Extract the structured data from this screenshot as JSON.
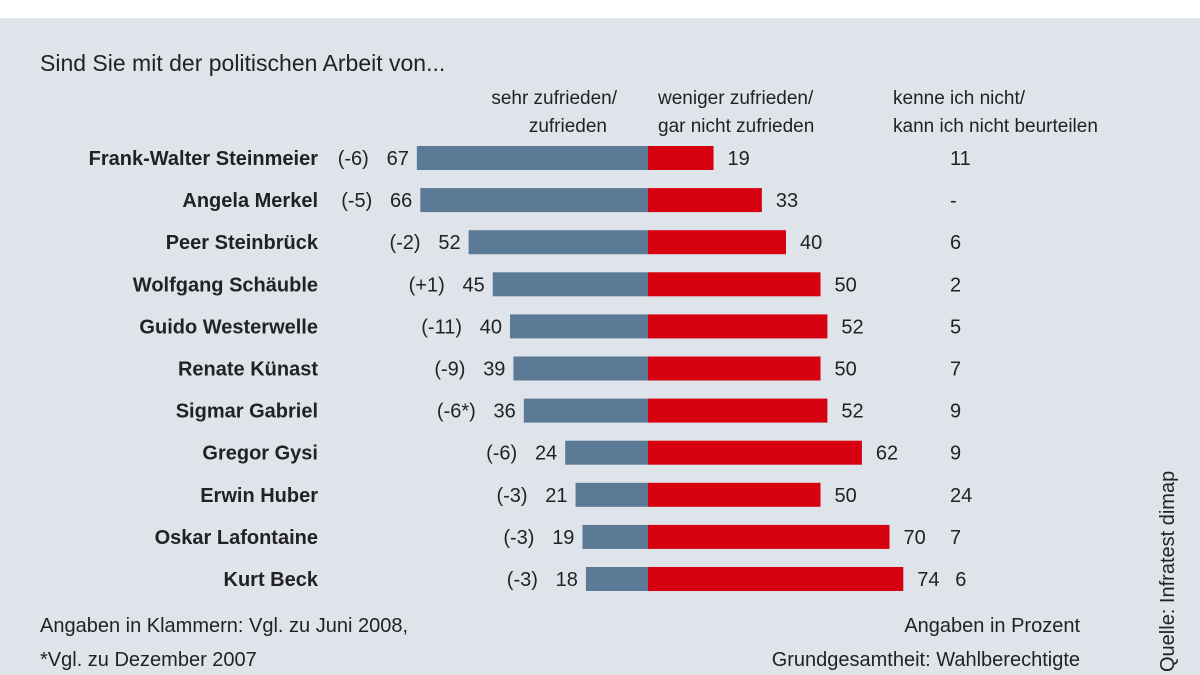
{
  "chart_data": {
    "type": "bar",
    "orientation": "horizontal-diverging",
    "title": "Sind Sie mit der politischen Arbeit von...",
    "column_headers": {
      "positive": [
        "sehr zufrieden/",
        "zufrieden"
      ],
      "negative": [
        "weniger zufrieden/",
        "gar nicht zufrieden"
      ],
      "unknown": [
        "kenne ich nicht/",
        "kann ich nicht beurteilen"
      ]
    },
    "categories": [
      "Frank-Walter Steinmeier",
      "Angela Merkel",
      "Peer Steinbrück",
      "Wolfgang Schäuble",
      "Guido Westerwelle",
      "Renate Künast",
      "Sigmar Gabriel",
      "Gregor Gysi",
      "Erwin Huber",
      "Oskar Lafontaine",
      "Kurt Beck"
    ],
    "changes": [
      "(-6)",
      "(-5)",
      "(-2)",
      "(+1)",
      "(-11)",
      "(-9)",
      "(-6*)",
      "(-6)",
      "(-3)",
      "(-3)",
      "(-3)"
    ],
    "series": [
      {
        "name": "sehr zufrieden/ zufrieden",
        "color": "#5b7a95",
        "values": [
          67,
          66,
          52,
          45,
          40,
          39,
          36,
          24,
          21,
          19,
          18
        ]
      },
      {
        "name": "weniger zufrieden/ gar nicht zufrieden",
        "color": "#d6000f",
        "values": [
          19,
          33,
          40,
          50,
          52,
          50,
          52,
          62,
          50,
          70,
          74
        ]
      },
      {
        "name": "kenne ich nicht/ kann ich nicht beurteilen",
        "values": [
          "11",
          "-",
          "6",
          "2",
          "5",
          "7",
          "9",
          "9",
          "24",
          "7",
          "6"
        ]
      }
    ],
    "footnotes": {
      "left": [
        "Angaben in Klammern: Vgl. zu Juni 2008,",
        "*Vgl. zu Dezember 2007"
      ],
      "right": [
        "Angaben in Prozent",
        "Grundgesamtheit: Wahlberechtigte"
      ]
    },
    "source": "Quelle: Infratest dimap",
    "background": "#dfe4eb"
  }
}
